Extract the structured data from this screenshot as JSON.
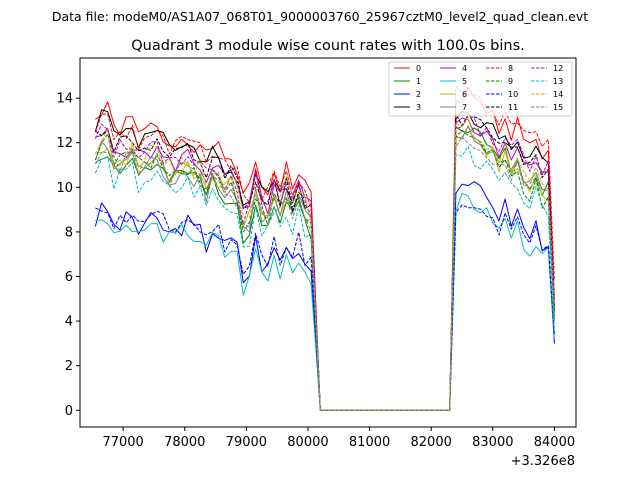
{
  "chart_data": {
    "type": "line",
    "suptitle": "Data file: modeM0/AS1A07_068T01_9000003760_25967cztM0_level2_quad_clean.evt",
    "title": "Quadrant 3 module wise count rates with 100.0s bins.",
    "x_offset_label": "+3.326e8",
    "xlim": [
      76300,
      84350
    ],
    "ylim": [
      -0.75,
      15.8
    ],
    "x_ticks": [
      77000,
      78000,
      79000,
      80000,
      81000,
      82000,
      83000,
      84000
    ],
    "x_tick_labels": [
      "77000",
      "78000",
      "79000",
      "80000",
      "81000",
      "82000",
      "83000",
      "84000"
    ],
    "y_ticks": [
      0,
      2,
      4,
      6,
      8,
      10,
      12,
      14
    ],
    "y_tick_labels": [
      "0",
      "2",
      "4",
      "6",
      "8",
      "10",
      "12",
      "14"
    ],
    "grid": false,
    "legend_position": "upper-right",
    "legend_columns": 4,
    "series": [
      {
        "name": "0",
        "color": "#ff0000",
        "style": "solid",
        "base": 13.3,
        "end1": 10.1,
        "base2": 14.2,
        "end2": 11.6,
        "seed": 1
      },
      {
        "name": "1",
        "color": "#008000",
        "style": "solid",
        "base": 11.5,
        "end1": 8.6,
        "base2": 12.8,
        "end2": 10.0,
        "seed": 2
      },
      {
        "name": "2",
        "color": "#0000ff",
        "style": "solid",
        "base": 8.8,
        "end1": 6.9,
        "base2": 10.3,
        "end2": 7.6,
        "seed": 3
      },
      {
        "name": "3",
        "color": "#000000",
        "style": "solid",
        "base": 13.2,
        "end1": 9.6,
        "base2": 13.4,
        "end2": 11.2,
        "seed": 4
      },
      {
        "name": "4",
        "color": "#bf00bf",
        "style": "solid",
        "base": 12.2,
        "end1": 9.5,
        "base2": 13.0,
        "end2": 10.6,
        "seed": 5
      },
      {
        "name": "5",
        "color": "#00bfbf",
        "style": "solid",
        "base": 8.6,
        "end1": 6.4,
        "base2": 9.5,
        "end2": 7.0,
        "seed": 6
      },
      {
        "name": "6",
        "color": "#bfbf00",
        "style": "solid",
        "base": 11.8,
        "end1": 9.0,
        "base2": 12.6,
        "end2": 9.6,
        "seed": 7
      },
      {
        "name": "7",
        "color": "#808080",
        "style": "solid",
        "base": 11.6,
        "end1": 8.8,
        "base2": 12.4,
        "end2": 10.0,
        "seed": 8
      },
      {
        "name": "8",
        "color": "#ff0000",
        "style": "dashed",
        "base": 13.0,
        "end1": 9.9,
        "base2": 14.4,
        "end2": 12.0,
        "seed": 9
      },
      {
        "name": "9",
        "color": "#008000",
        "style": "dashed",
        "base": 11.9,
        "end1": 8.9,
        "base2": 12.6,
        "end2": 9.2,
        "seed": 10
      },
      {
        "name": "10",
        "color": "#0000ff",
        "style": "dashed",
        "base": 9.0,
        "end1": 7.1,
        "base2": 9.0,
        "end2": 7.6,
        "seed": 11
      },
      {
        "name": "11",
        "color": "#000000",
        "style": "dashed",
        "base": 12.6,
        "end1": 9.4,
        "base2": 13.2,
        "end2": 10.8,
        "seed": 12
      },
      {
        "name": "12",
        "color": "#bf00bf",
        "style": "dashed",
        "base": 12.4,
        "end1": 9.4,
        "base2": 13.0,
        "end2": 11.0,
        "seed": 13
      },
      {
        "name": "13",
        "color": "#00bfbf",
        "style": "dashed",
        "base": 11.0,
        "end1": 8.2,
        "base2": 11.6,
        "end2": 9.0,
        "seed": 14
      },
      {
        "name": "14",
        "color": "#bfbf00",
        "style": "dashed",
        "base": 12.0,
        "end1": 9.4,
        "base2": 12.8,
        "end2": 10.0,
        "seed": 15
      },
      {
        "name": "15",
        "color": "#808080",
        "style": "dashed",
        "base": 11.7,
        "end1": 8.7,
        "base2": 12.2,
        "end2": 9.8,
        "seed": 16
      }
    ],
    "segments": {
      "seg1_start": 76550,
      "seg1_end": 80050,
      "drop_to": 80200,
      "gap_end": 82300,
      "seg2_start": 82400,
      "seg2_end": 83950,
      "final_x": 84000,
      "bin": 100,
      "ends": {
        "0": 5.0,
        "1": 4.2,
        "2": 3.0,
        "3": 4.6,
        "4": 4.4,
        "5": 3.2,
        "6": 4.3,
        "7": 4.0,
        "8": 5.8,
        "9": 4.1,
        "10": 3.4,
        "11": 4.5,
        "12": 4.8,
        "13": 3.6,
        "14": 4.5,
        "15": 4.2
      }
    }
  }
}
